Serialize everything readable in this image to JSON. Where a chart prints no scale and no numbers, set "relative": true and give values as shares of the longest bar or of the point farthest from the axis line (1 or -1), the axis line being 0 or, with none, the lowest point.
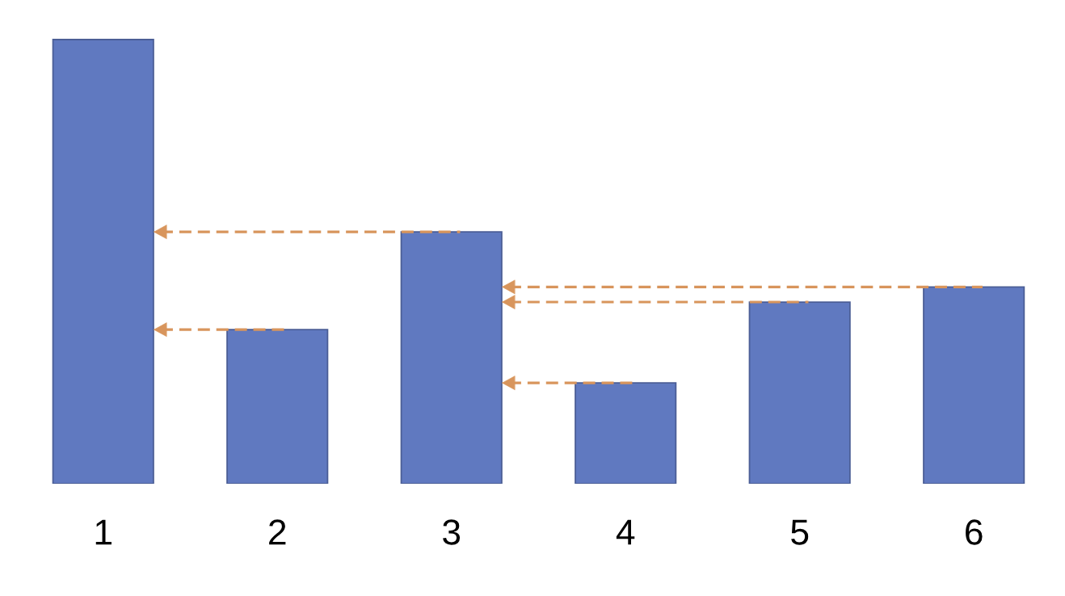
{
  "chart_data": {
    "type": "bar",
    "relative": true,
    "categories": [
      "1",
      "2",
      "3",
      "4",
      "5",
      "6"
    ],
    "values": [
      1,
      0.347,
      0.567,
      0.227,
      0.409,
      0.443
    ],
    "color": "#6079c0",
    "ref_lines": [
      {
        "axis": "y",
        "value": 0.347,
        "color": "#d8955c",
        "line_style": "dashed"
      },
      {
        "axis": "y",
        "value": 0.567,
        "color": "#d8955c",
        "line_style": "dashed"
      },
      {
        "axis": "y",
        "value": 0.227,
        "color": "#d8955c",
        "line_style": "dashed"
      },
      {
        "axis": "y",
        "value": 0.409,
        "color": "#d8955c",
        "line_style": "dashed"
      },
      {
        "axis": "y",
        "value": 0.443,
        "color": "#d8955c",
        "line_style": "dashed"
      }
    ]
  }
}
